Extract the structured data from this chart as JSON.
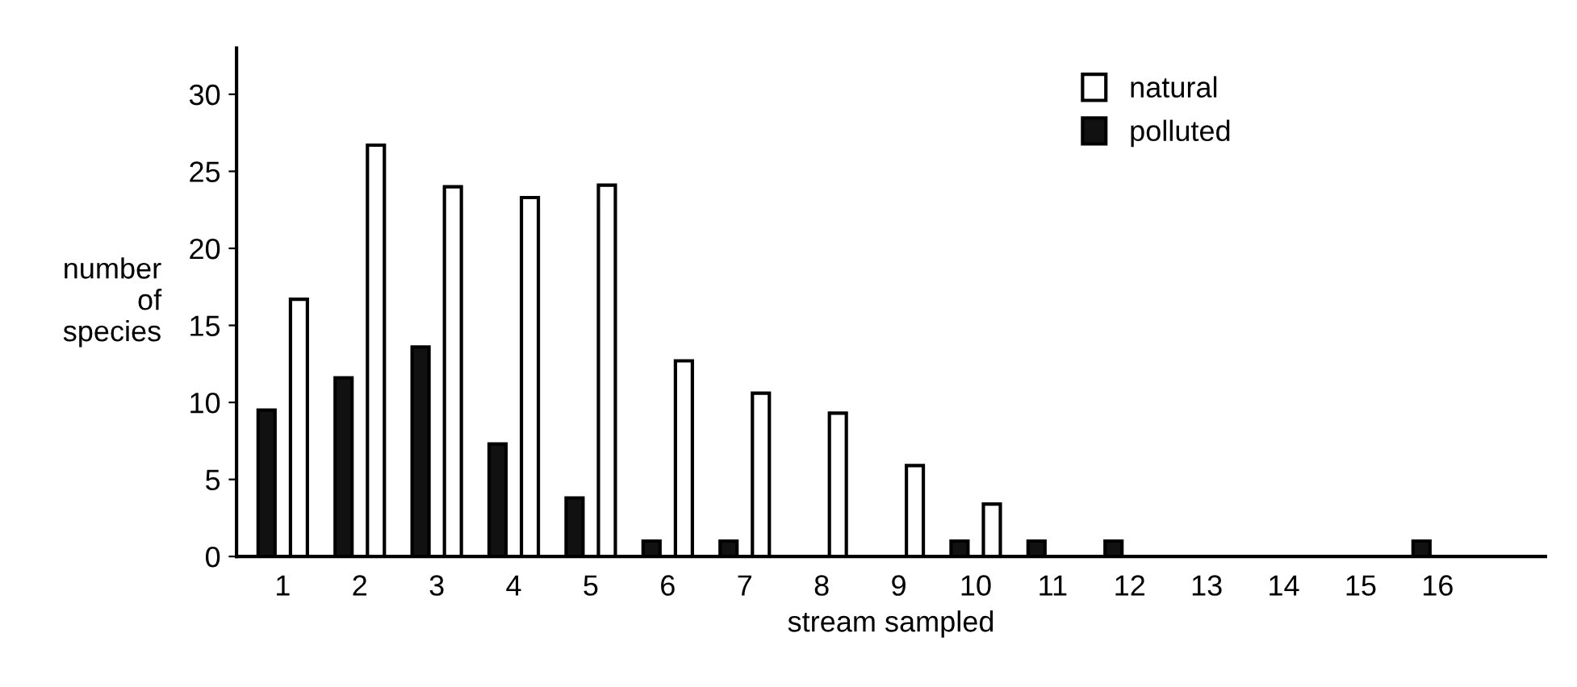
{
  "chart_data": {
    "type": "bar",
    "xlabel": "stream sampled",
    "ylabel": "number\nof\nspecies",
    "categories": [
      "1",
      "2",
      "3",
      "4",
      "5",
      "6",
      "7",
      "8",
      "9",
      "10",
      "11",
      "12",
      "13",
      "14",
      "15",
      "16"
    ],
    "series": [
      {
        "name": "polluted",
        "color": "#111111",
        "values": [
          9.5,
          11.6,
          13.6,
          7.3,
          3.8,
          1,
          1,
          0,
          0,
          1,
          1,
          1,
          0,
          0,
          0,
          1
        ]
      },
      {
        "name": "natural",
        "color": "#ffffff",
        "values": [
          16.7,
          26.7,
          24,
          23.3,
          24.1,
          12.7,
          10.6,
          9.3,
          5.9,
          3.4,
          0,
          0,
          0,
          0,
          0,
          0
        ]
      }
    ],
    "ylim": [
      0,
      33
    ],
    "yticks": [
      0,
      5,
      10,
      15,
      20,
      25,
      30
    ],
    "grid": false,
    "legend": "top right"
  }
}
